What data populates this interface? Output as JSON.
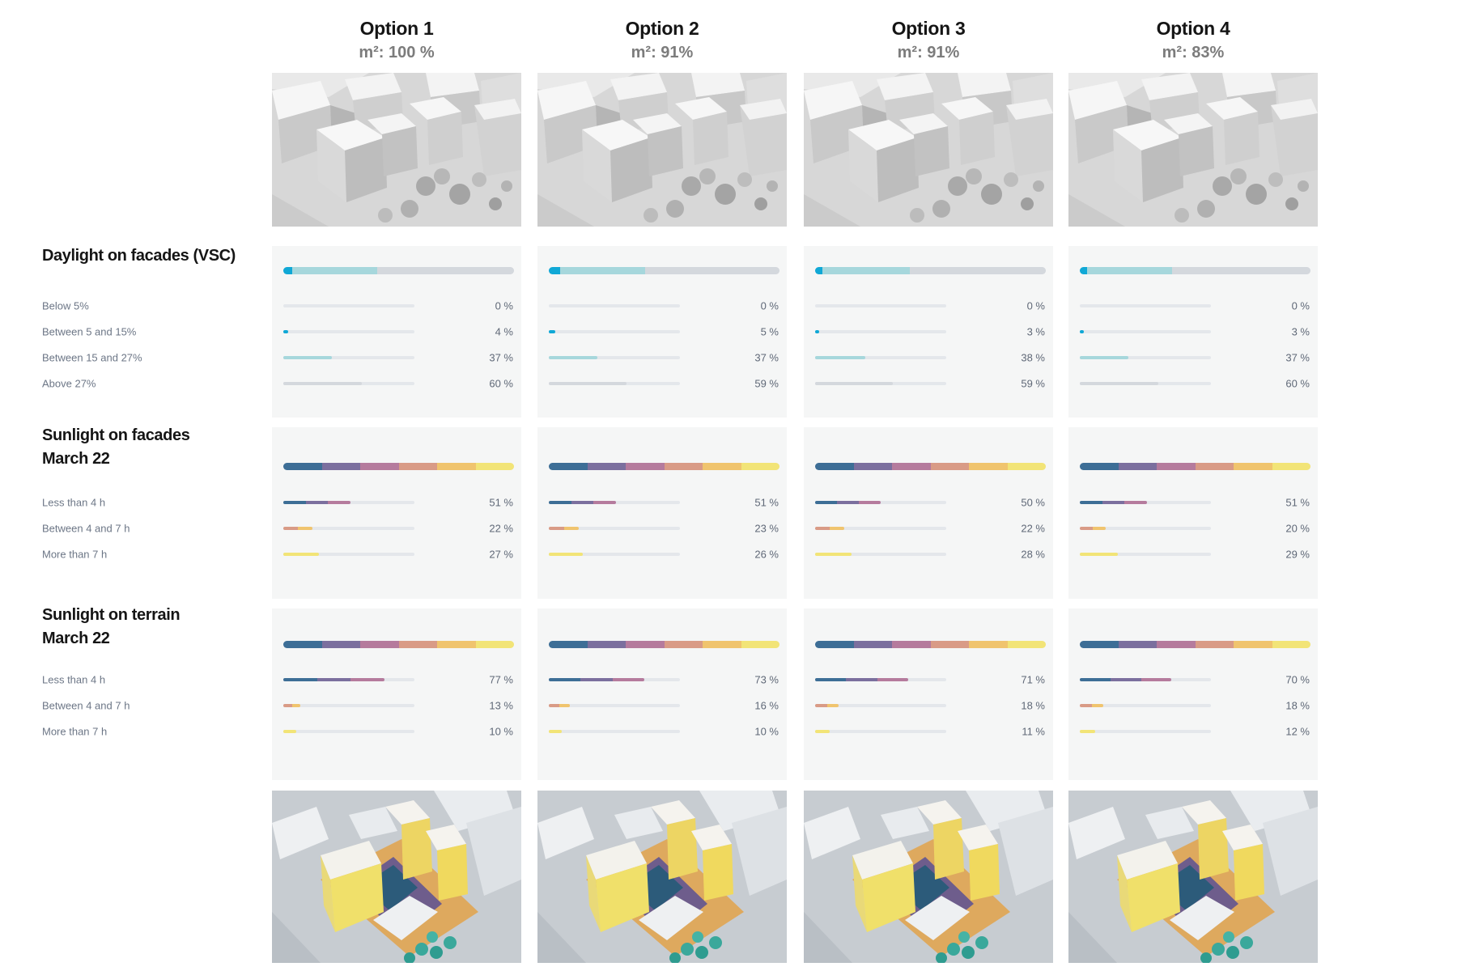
{
  "colors": {
    "vsc": [
      "#1b5a85",
      "#10a8d6",
      "#a6d7dc",
      "#d4d8dd"
    ],
    "hours_ramp": [
      "#3d6e96",
      "#7b6f9e",
      "#b57b9d",
      "#d99b86",
      "#f0c46e",
      "#f2e477"
    ]
  },
  "options": [
    {
      "title": "Option 1",
      "area": "m²: 100 %"
    },
    {
      "title": "Option 2",
      "area": "m²: 91%"
    },
    {
      "title": "Option 3",
      "area": "m²: 91%"
    },
    {
      "title": "Option 4",
      "area": "m²: 83%"
    }
  ],
  "sections": {
    "daylight": {
      "title": "Daylight on facades  (VSC)",
      "rows": [
        "Below 5%",
        "Between 5 and 15%",
        "Between 15 and 27%",
        "Above 27%"
      ],
      "values": [
        [
          0,
          4,
          37,
          60
        ],
        [
          0,
          5,
          37,
          59
        ],
        [
          0,
          3,
          38,
          59
        ],
        [
          0,
          3,
          37,
          60
        ]
      ],
      "labels": [
        [
          "0 %",
          "4 %",
          "37 %",
          "60 %"
        ],
        [
          "0 %",
          "5 %",
          "37 %",
          "59 %"
        ],
        [
          "0 %",
          "3 %",
          "38 %",
          "59 %"
        ],
        [
          "0 %",
          "3 %",
          "37 %",
          "60 %"
        ]
      ]
    },
    "sun_facades": {
      "title_line1": "Sunlight on facades",
      "title_line2": "March 22",
      "rows": [
        "Less than 4 h",
        "Between 4 and 7 h",
        "More than 7 h"
      ],
      "values": [
        [
          51,
          22,
          27
        ],
        [
          51,
          23,
          26
        ],
        [
          50,
          22,
          28
        ],
        [
          51,
          20,
          29
        ]
      ],
      "labels": [
        [
          "51 %",
          "22 %",
          "27 %"
        ],
        [
          "51 %",
          "23 %",
          "26 %"
        ],
        [
          "50 %",
          "22 %",
          "28 %"
        ],
        [
          "51 %",
          "20 %",
          "29 %"
        ]
      ]
    },
    "sun_terrain": {
      "title_line1": "Sunlight on terrain",
      "title_line2": "March 22",
      "rows": [
        "Less than 4 h",
        "Between 4 and 7 h",
        "More than 7 h"
      ],
      "values": [
        [
          77,
          13,
          10
        ],
        [
          73,
          16,
          10
        ],
        [
          71,
          18,
          11
        ],
        [
          70,
          18,
          12
        ]
      ],
      "labels": [
        [
          "77 %",
          "13 %",
          "10 %"
        ],
        [
          "73 %",
          "16 %",
          "10 %"
        ],
        [
          "71 %",
          "18 %",
          "11 %"
        ],
        [
          "70 %",
          "18 %",
          "12 %"
        ]
      ]
    }
  }
}
